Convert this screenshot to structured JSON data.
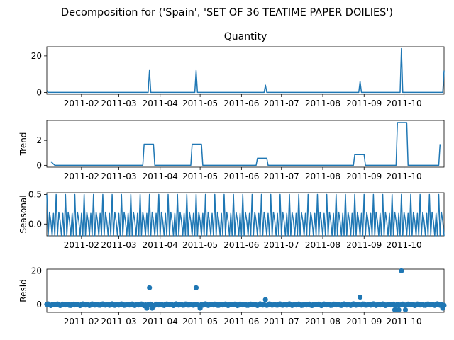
{
  "figure": {
    "suptitle": "Decomposition for ('Spain', 'SET OF 36 TEATIME PAPER DOILIES')"
  },
  "colors": {
    "line": "#1f77b4",
    "axis": "#000000",
    "background": "#ffffff"
  },
  "x_ticks": [
    "2011-02",
    "2011-03",
    "2011-04",
    "2011-05",
    "2011-06",
    "2011-07",
    "2011-08",
    "2011-09",
    "2011-10"
  ],
  "chart_data": [
    {
      "type": "line",
      "title": "Quantity",
      "ylabel": "",
      "ylim": [
        -1,
        25
      ],
      "yticks": [
        0,
        20
      ],
      "x_range": [
        "2011-01-06",
        "2011-10-31"
      ],
      "spikes": [
        {
          "date": "2011-03-24",
          "value": 12
        },
        {
          "date": "2011-04-28",
          "value": 12
        },
        {
          "date": "2011-06-19",
          "value": 4
        },
        {
          "date": "2011-08-29",
          "value": 6
        },
        {
          "date": "2011-09-29",
          "value": 24
        },
        {
          "date": "2011-10-31",
          "value": 12
        }
      ],
      "baseline": 0
    },
    {
      "type": "line",
      "title": "",
      "ylabel": "Trend",
      "ylim": [
        -0.15,
        3.6
      ],
      "yticks": [
        0,
        2
      ],
      "points": [
        {
          "date": "2011-01-09",
          "value": 0.3
        },
        {
          "date": "2011-01-12",
          "value": 0.0
        },
        {
          "date": "2011-03-19",
          "value": 0.0
        },
        {
          "date": "2011-03-20",
          "value": 1.7
        },
        {
          "date": "2011-03-27",
          "value": 1.7
        },
        {
          "date": "2011-03-28",
          "value": 0.0
        },
        {
          "date": "2011-04-24",
          "value": 0.0
        },
        {
          "date": "2011-04-25",
          "value": 1.7
        },
        {
          "date": "2011-05-02",
          "value": 1.7
        },
        {
          "date": "2011-05-03",
          "value": 0.0
        },
        {
          "date": "2011-06-12",
          "value": 0.0
        },
        {
          "date": "2011-06-13",
          "value": 0.57
        },
        {
          "date": "2011-06-20",
          "value": 0.57
        },
        {
          "date": "2011-06-21",
          "value": 0.0
        },
        {
          "date": "2011-08-24",
          "value": 0.0
        },
        {
          "date": "2011-08-25",
          "value": 0.86
        },
        {
          "date": "2011-09-01",
          "value": 0.86
        },
        {
          "date": "2011-09-02",
          "value": 0.0
        },
        {
          "date": "2011-09-25",
          "value": 0.0
        },
        {
          "date": "2011-09-26",
          "value": 3.43
        },
        {
          "date": "2011-10-03",
          "value": 3.43
        },
        {
          "date": "2011-10-04",
          "value": 0.0
        },
        {
          "date": "2011-10-27",
          "value": 0.0
        },
        {
          "date": "2011-10-28",
          "value": 1.7
        }
      ]
    },
    {
      "type": "line",
      "title": "",
      "ylabel": "Seasonal",
      "ylim": [
        -0.2,
        0.53
      ],
      "yticks": [
        0.0,
        0.5
      ],
      "period_days": 7,
      "weekly_pattern": [
        0.5,
        -0.2,
        0.2,
        0.05,
        -0.2,
        0.18,
        -0.2
      ]
    },
    {
      "type": "scatter",
      "title": "",
      "ylabel": "Resid",
      "ylim": [
        -4.5,
        21
      ],
      "yticks": [
        0,
        20
      ],
      "outliers": [
        {
          "date": "2011-03-24",
          "value": 10
        },
        {
          "date": "2011-04-28",
          "value": 10
        },
        {
          "date": "2011-06-19",
          "value": 3
        },
        {
          "date": "2011-08-29",
          "value": 4.5
        },
        {
          "date": "2011-09-29",
          "value": 20
        }
      ],
      "dips": [
        {
          "date": "2011-03-22",
          "value": -2
        },
        {
          "date": "2011-03-26",
          "value": -2
        },
        {
          "date": "2011-05-01",
          "value": -2
        },
        {
          "date": "2011-09-24",
          "value": -3
        },
        {
          "date": "2011-09-27",
          "value": -3
        },
        {
          "date": "2011-10-02",
          "value": -3
        },
        {
          "date": "2011-10-30",
          "value": -2
        }
      ]
    }
  ]
}
